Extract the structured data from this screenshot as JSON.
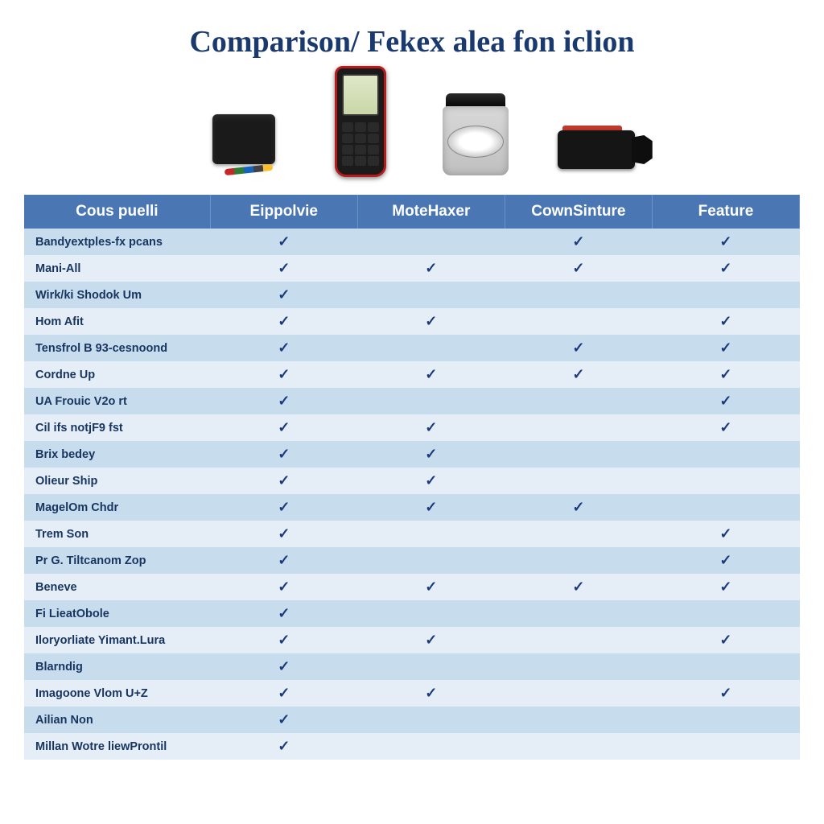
{
  "title": "Comparison/ Fekex alea fon iclion",
  "colors": {
    "title": "#1a3a6e",
    "header_bg": "#4a77b4",
    "header_text": "#ffffff",
    "row_even": "#c7dced",
    "row_odd": "#e5eef7",
    "check": "#1a3a7a",
    "feature_text": "#17355f"
  },
  "typography": {
    "title_fontsize": 38,
    "title_family": "Georgia, serif",
    "header_fontsize": 19,
    "body_fontsize": 15,
    "feature_fontsize": 14.5
  },
  "table": {
    "type": "table",
    "columns": [
      "Cous puelli",
      "Eippolvie",
      "MoteHaxer",
      "CownSinture",
      "Feature"
    ],
    "column_widths": [
      "24%",
      "19%",
      "19%",
      "19%",
      "19%"
    ],
    "check_glyph": "✓",
    "rows": [
      {
        "feature": "Bandyextples-fx pcans",
        "checks": [
          true,
          false,
          true,
          true
        ]
      },
      {
        "feature": "Mani-All",
        "checks": [
          true,
          true,
          true,
          true
        ]
      },
      {
        "feature": "Wirk/ki Shodok Um",
        "checks": [
          true,
          false,
          false,
          false
        ]
      },
      {
        "feature": "Hom Afit",
        "checks": [
          true,
          true,
          false,
          true
        ]
      },
      {
        "feature": "Tensfrol B 93-cesnoond",
        "checks": [
          true,
          false,
          true,
          true
        ]
      },
      {
        "feature": "Cordne Up",
        "checks": [
          true,
          true,
          true,
          true
        ]
      },
      {
        "feature": "UA Frouic V2o rt",
        "checks": [
          true,
          false,
          false,
          true
        ]
      },
      {
        "feature": "Cil ifs notjF9 fst",
        "checks": [
          true,
          true,
          false,
          true
        ]
      },
      {
        "feature": "Brix bedey",
        "checks": [
          true,
          true,
          false,
          false
        ]
      },
      {
        "feature": "Olieur Ship",
        "checks": [
          true,
          true,
          false,
          false
        ]
      },
      {
        "feature": "MagelOm Chdr",
        "checks": [
          true,
          true,
          true,
          false
        ]
      },
      {
        "feature": "Trem Son",
        "checks": [
          true,
          false,
          false,
          true
        ]
      },
      {
        "feature": "Pr G. Tiltcanom Zop",
        "checks": [
          true,
          false,
          false,
          true
        ]
      },
      {
        "feature": "Beneve",
        "checks": [
          true,
          true,
          true,
          true
        ]
      },
      {
        "feature": "Fi LieatObole",
        "checks": [
          true,
          false,
          false,
          false
        ]
      },
      {
        "feature": "Iloryorliate Yimant.Lura",
        "checks": [
          true,
          true,
          false,
          true
        ]
      },
      {
        "feature": "Blarndig",
        "checks": [
          true,
          false,
          false,
          false
        ]
      },
      {
        "feature": "Imagoone Vlom U+Z",
        "checks": [
          true,
          true,
          false,
          true
        ]
      },
      {
        "feature": "Ailian Non",
        "checks": [
          true,
          false,
          false,
          false
        ]
      },
      {
        "feature": "Millan Wotre liewProntil",
        "checks": [
          true,
          false,
          false,
          false
        ]
      }
    ]
  },
  "products": [
    {
      "name": "obd-module",
      "icon": "obd-module-icon"
    },
    {
      "name": "handheld-scanner",
      "icon": "scanner-icon"
    },
    {
      "name": "jar-product",
      "icon": "jar-icon"
    },
    {
      "name": "obd-dongle",
      "icon": "dongle-icon"
    }
  ]
}
